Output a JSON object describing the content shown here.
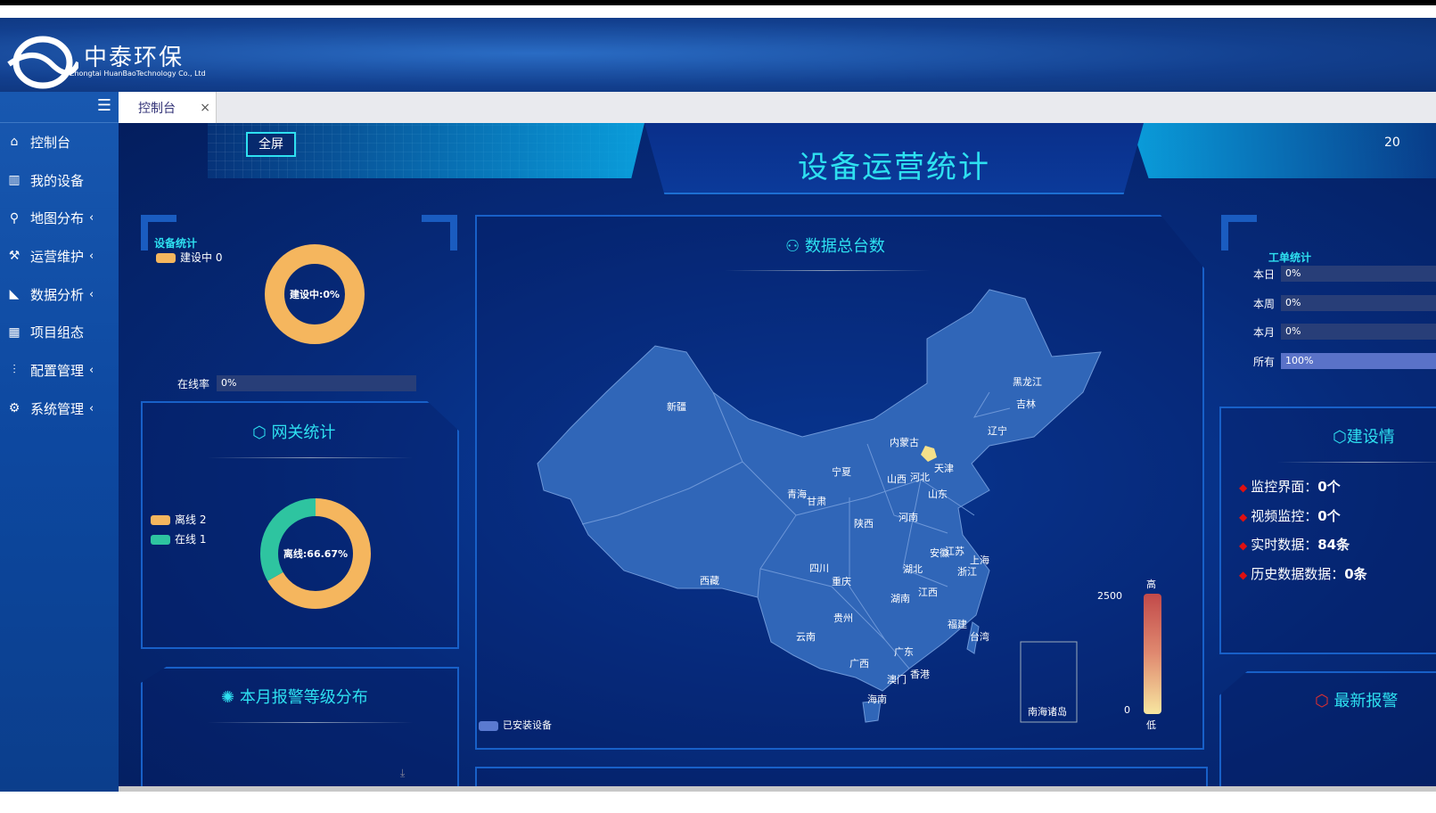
{
  "header": {
    "company_cn": "中泰环保",
    "company_en": "Zhongtai HuanBaoTechnology Co., Ltd"
  },
  "sidebar": {
    "toggle_icon": "menu-icon",
    "items": [
      {
        "label": "控制台",
        "icon": "home-icon",
        "expand": false
      },
      {
        "label": "我的设备",
        "icon": "books-icon",
        "expand": false
      },
      {
        "label": "地图分布",
        "icon": "map-marker-icon",
        "expand": true
      },
      {
        "label": "运营维护",
        "icon": "tools-icon",
        "expand": true
      },
      {
        "label": "数据分析",
        "icon": "area-chart-icon",
        "expand": true
      },
      {
        "label": "项目组态",
        "icon": "grid-icon",
        "expand": false
      },
      {
        "label": "配置管理",
        "icon": "sliders-icon",
        "expand": true
      },
      {
        "label": "系统管理",
        "icon": "gear-icon",
        "expand": true
      }
    ]
  },
  "tabs": [
    {
      "label": "控制台",
      "close": "×"
    }
  ],
  "dashboard": {
    "title": "设备运营统计",
    "fullscreen_label": "全屏",
    "date_partial": "20",
    "device_stats": {
      "title": "设备统计",
      "legend": "建设中",
      "legend_value": "0",
      "donut_label": "建设中:0%",
      "online_rate_label": "在线率",
      "online_rate": "0%",
      "online_rate_value": 0,
      "color": "#f5b65e"
    },
    "gateway": {
      "title": "网关统计",
      "legend": [
        {
          "label": "离线",
          "value": "2",
          "color": "#f5b65e"
        },
        {
          "label": "在线",
          "value": "1",
          "color": "#2ec4a0"
        }
      ],
      "donut_label": "离线:66.67%",
      "offline": 2,
      "online": 1
    },
    "alarm_level": {
      "title": "本月报警等级分布"
    },
    "map": {
      "title": "数据总台数",
      "legend": "已安装设备",
      "scale_max": "2500",
      "scale_min": "0",
      "scale_high": "高",
      "scale_low": "低",
      "inset_label": "南海诸岛",
      "provinces": [
        "新疆",
        "西藏",
        "内蒙古",
        "黑龙江",
        "吉林",
        "辽宁",
        "天津",
        "河北",
        "山西",
        "宁夏",
        "青海",
        "甘肃",
        "陕西",
        "河南",
        "山东",
        "安徽",
        "江苏",
        "上海",
        "浙江",
        "湖北",
        "四川",
        "重庆",
        "江西",
        "湖南",
        "贵州",
        "福建",
        "台湾",
        "云南",
        "广西",
        "广东",
        "香港",
        "澳门",
        "海南"
      ]
    },
    "work_orders": {
      "title": "工单统计",
      "rows": [
        {
          "label": "本日",
          "value": "0%",
          "pct": 0
        },
        {
          "label": "本周",
          "value": "0%",
          "pct": 0
        },
        {
          "label": "本月",
          "value": "0%",
          "pct": 0
        },
        {
          "label": "所有",
          "value": "100%",
          "pct": 100
        }
      ]
    },
    "construction": {
      "title": "建设情",
      "items": [
        {
          "label": "监控界面：",
          "value": "0个"
        },
        {
          "label": "视频监控：",
          "value": "0个"
        },
        {
          "label": "实时数据：",
          "value": "84条"
        },
        {
          "label": "历史数据数据：",
          "value": "0条"
        }
      ]
    },
    "latest_alarm": {
      "title": "最新报警"
    }
  }
}
